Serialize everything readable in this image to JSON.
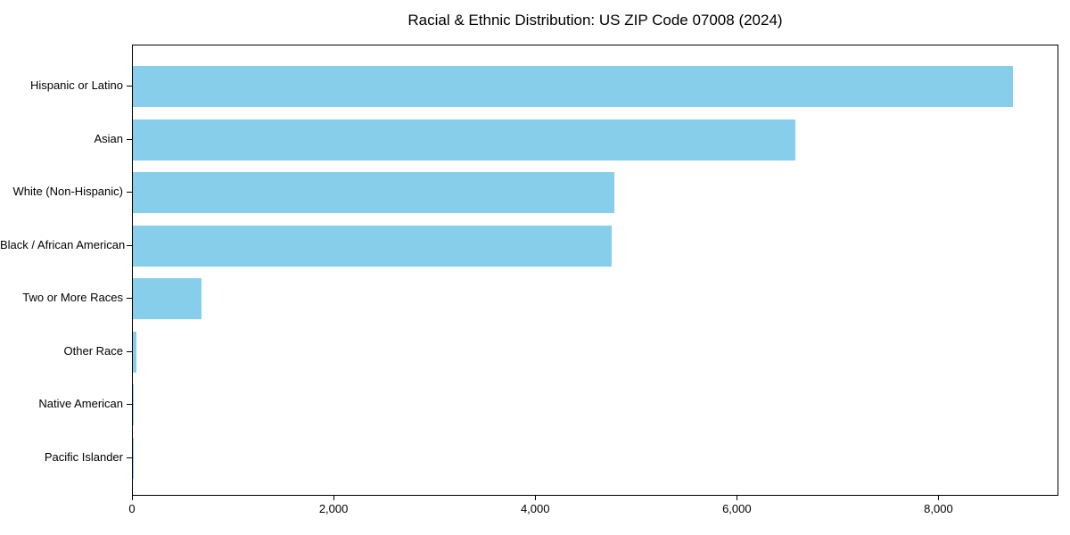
{
  "chart_data": {
    "type": "bar",
    "orientation": "horizontal",
    "title": "Racial & Ethnic Distribution: US ZIP Code 07008 (2024)",
    "categories": [
      "Hispanic or Latino",
      "Asian",
      "White (Non-Hispanic)",
      "Black / African American",
      "Two or More Races",
      "Other Race",
      "Native American",
      "Pacific Islander"
    ],
    "values": [
      8730,
      6570,
      4775,
      4750,
      680,
      35,
      10,
      5
    ],
    "xlabel": "",
    "ylabel": "",
    "xlim": [
      0,
      9190
    ],
    "x_ticks": [
      0,
      2000,
      4000,
      6000,
      8000
    ],
    "x_tick_labels": [
      "0",
      "2,000",
      "4,000",
      "6,000",
      "8,000"
    ],
    "bar_color": "#87CEEB",
    "frame_color": "#000000",
    "background_color": "#ffffff",
    "grid": false,
    "legend": null
  }
}
